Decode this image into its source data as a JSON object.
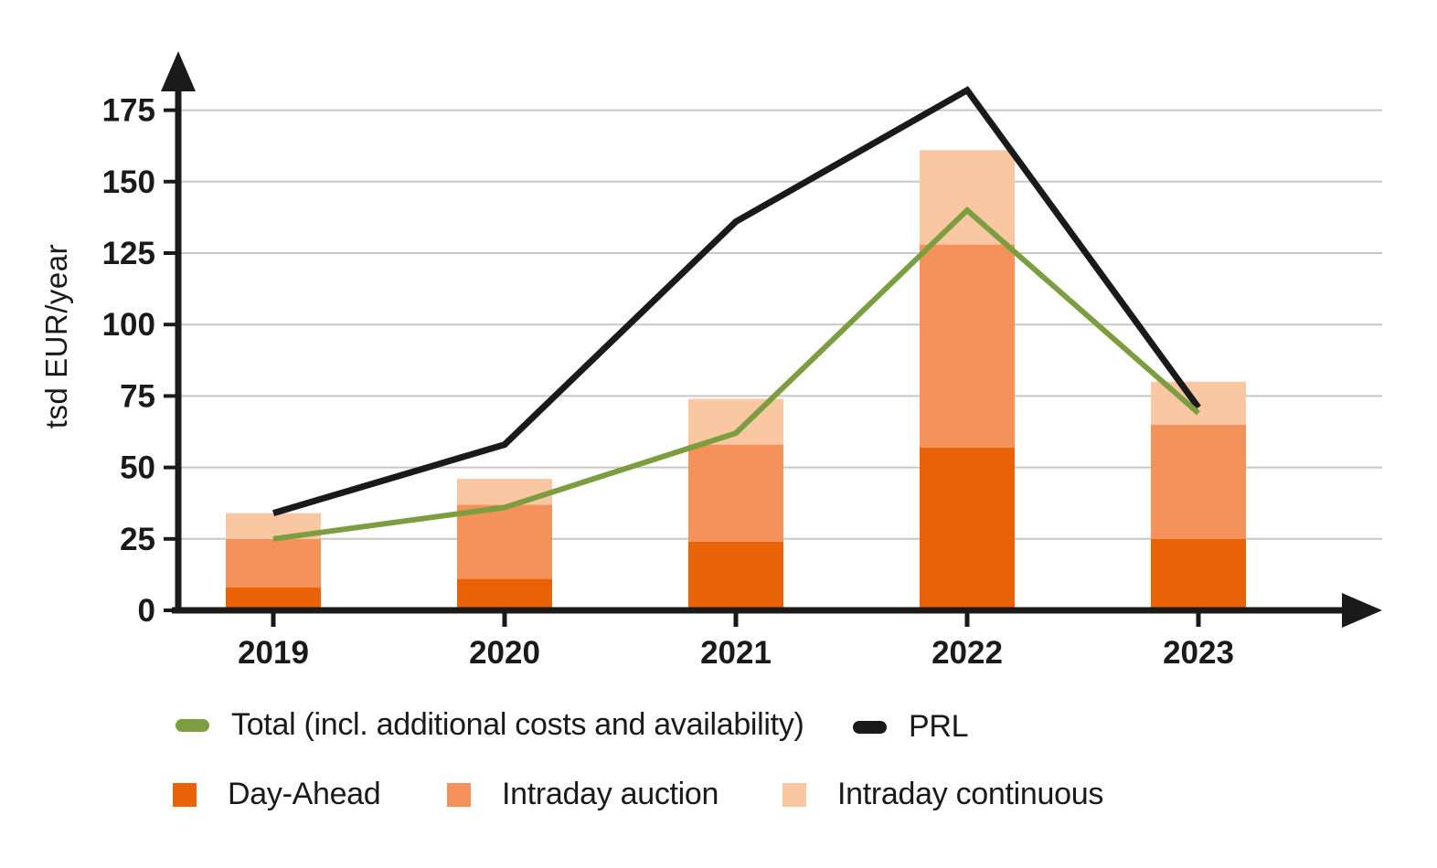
{
  "chart_data": {
    "type": "bar",
    "stacked": true,
    "title": "",
    "xlabel": "",
    "ylabel": "tsd EUR/year",
    "categories": [
      "2019",
      "2020",
      "2021",
      "2022",
      "2023"
    ],
    "yticks": [
      0,
      25,
      50,
      75,
      100,
      125,
      150,
      175
    ],
    "ylim": [
      0,
      190
    ],
    "grid": "horizontal",
    "legend_position": "bottom",
    "bar_series": [
      {
        "name": "Day-Ahead",
        "color": "#e96206",
        "values": [
          8,
          11,
          24,
          57,
          25
        ]
      },
      {
        "name": "Intraday auction",
        "color": "#f5915a",
        "values": [
          17,
          26,
          34,
          71,
          40
        ]
      },
      {
        "name": "Intraday continuous",
        "color": "#f9c8a3",
        "values": [
          9,
          9,
          16,
          33,
          15
        ]
      }
    ],
    "bar_totals": [
      34,
      46,
      74,
      161,
      80
    ],
    "line_series": [
      {
        "name": "Total (incl. additional costs and availability)",
        "color": "#7c9d40",
        "values": [
          25,
          36,
          62,
          140,
          69
        ]
      },
      {
        "name": "PRL",
        "color": "#1a1a1a",
        "values": [
          34,
          58,
          136,
          182,
          71
        ]
      }
    ]
  },
  "style": {
    "axis_color": "#1a1a1a",
    "grid_color": "#c8c8c8",
    "tick_label_color": "#1a1a1a"
  }
}
